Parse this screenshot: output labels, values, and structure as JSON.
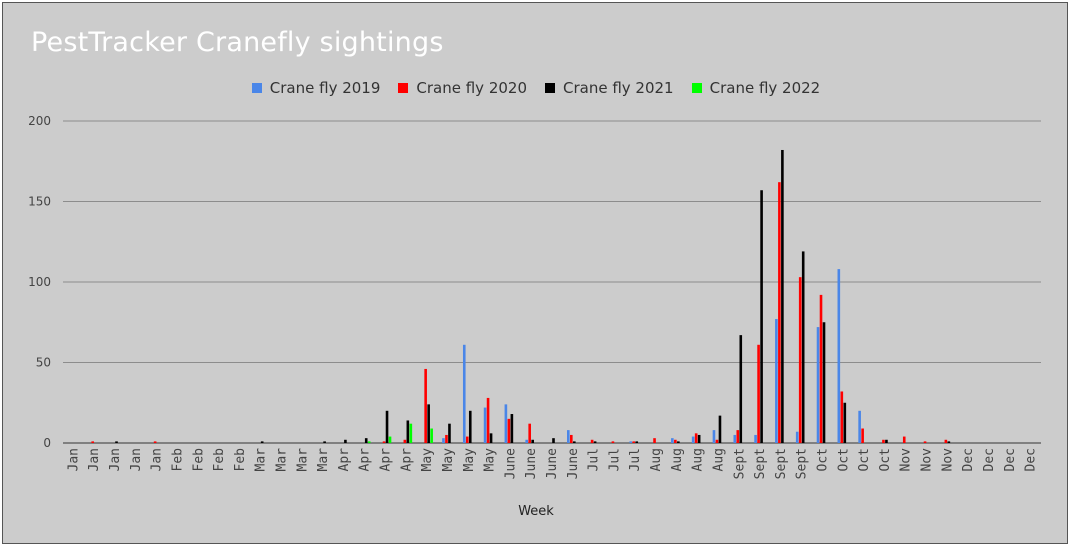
{
  "chart_data": {
    "type": "bar",
    "title": "PestTracker Cranefly sightings",
    "xlabel": "Week",
    "ylabel": "",
    "ylim": [
      0,
      200
    ],
    "yticks": [
      0,
      50,
      100,
      150,
      200
    ],
    "grid": true,
    "legend_position": "top-center",
    "categories": [
      "Jan",
      "Jan",
      "Jan",
      "Jan",
      "Jan",
      "Feb",
      "Feb",
      "Feb",
      "Feb",
      "Mar",
      "Mar",
      "Mar",
      "Mar",
      "Apr",
      "Apr",
      "Apr",
      "Apr",
      "May",
      "May",
      "May",
      "May",
      "June",
      "June",
      "June",
      "June",
      "Jul",
      "Jul",
      "Jul",
      "Aug",
      "Aug",
      "Aug",
      "Aug",
      "Sept",
      "Sept",
      "Sept",
      "Sept",
      "Oct",
      "Oct",
      "Oct",
      "Oct",
      "Nov",
      "Nov",
      "Nov",
      "Dec",
      "Dec",
      "Dec",
      "Dec"
    ],
    "series": [
      {
        "name": "Crane fly 2019",
        "color": "#4a86e8",
        "values": [
          0,
          0,
          0,
          0,
          0,
          0,
          0,
          0,
          0,
          0,
          0,
          0,
          0,
          0,
          0,
          0,
          0,
          0,
          3,
          61,
          22,
          24,
          2,
          0,
          8,
          0,
          0,
          1,
          0,
          3,
          4,
          8,
          5,
          5,
          77,
          7,
          72,
          108,
          20,
          0,
          0,
          0,
          0,
          0,
          0,
          0,
          0
        ]
      },
      {
        "name": "Crane fly 2020",
        "color": "#ff0000",
        "values": [
          0,
          1,
          0,
          0,
          1,
          0,
          0,
          0,
          0,
          0,
          0,
          0,
          0,
          0,
          0,
          1,
          2,
          46,
          5,
          4,
          28,
          15,
          12,
          0,
          5,
          2,
          1,
          1,
          3,
          2,
          6,
          2,
          8,
          61,
          162,
          103,
          92,
          32,
          9,
          2,
          4,
          1,
          2,
          0,
          0,
          0,
          0
        ]
      },
      {
        "name": "Crane fly 2021",
        "color": "#000000",
        "values": [
          0,
          0,
          1,
          0,
          0,
          0,
          0,
          0,
          0,
          1,
          0,
          0,
          1,
          2,
          3,
          20,
          14,
          24,
          12,
          20,
          6,
          18,
          2,
          3,
          1,
          1,
          0,
          1,
          0,
          1,
          5,
          17,
          67,
          157,
          182,
          119,
          75,
          25,
          0,
          2,
          0,
          0,
          1,
          0,
          0,
          0,
          0
        ]
      },
      {
        "name": "Crane fly 2022",
        "color": "#00ff00",
        "values": [
          0,
          0,
          0,
          0,
          0,
          0,
          0,
          0,
          0,
          0,
          0,
          0,
          0,
          0,
          1,
          4,
          12,
          9,
          0,
          0,
          0,
          0,
          0,
          0,
          0,
          0,
          0,
          0,
          0,
          0,
          0,
          0,
          0,
          0,
          0,
          0,
          0,
          0,
          0,
          0,
          0,
          0,
          0,
          0,
          0,
          0,
          0
        ]
      }
    ]
  }
}
